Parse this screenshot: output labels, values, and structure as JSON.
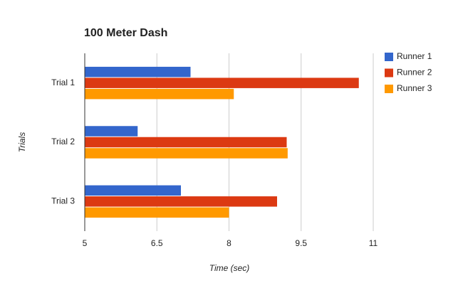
{
  "chart_data": {
    "type": "hbar",
    "title": "100 Meter Dash",
    "xlabel": "Time (sec)",
    "ylabel": "Trials",
    "categories": [
      "Trial 1",
      "Trial 2",
      "Trial 3"
    ],
    "series": [
      {
        "name": "Runner 1",
        "color": "#3366cc",
        "values": [
          7.2,
          6.1,
          7.0
        ]
      },
      {
        "name": "Runner 2",
        "color": "#dc3912",
        "values": [
          10.7,
          9.2,
          9.0
        ]
      },
      {
        "name": "Runner 3",
        "color": "#ff9900",
        "values": [
          8.1,
          9.22,
          8.0
        ]
      }
    ],
    "xlim": [
      5,
      11
    ],
    "xticks": [
      5,
      6.5,
      8,
      9.5,
      11
    ],
    "grid": true,
    "legend": "right"
  }
}
